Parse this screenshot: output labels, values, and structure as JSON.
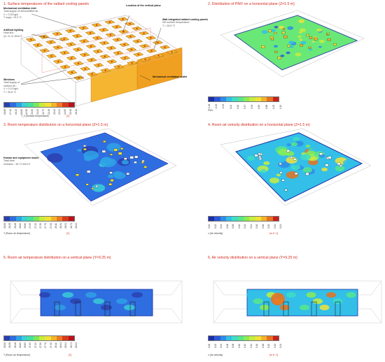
{
  "colors": {
    "title": "#d62a1e",
    "accent_orange": "#f0a020",
    "temp_scale": [
      "#2a3fae",
      "#2f6ee0",
      "#2fa3e6",
      "#3ad1d8",
      "#46e0a0",
      "#7ee85a",
      "#c7ec3e",
      "#f1e23a",
      "#f4b42a",
      "#ee7a22",
      "#d83a1e",
      "#b8121c"
    ],
    "pmv_scale": [
      "#1a2fa8",
      "#2d59d8",
      "#2f8ce8",
      "#33bfe8",
      "#3fdcc6",
      "#58e68a",
      "#8bec54",
      "#c7ec3e",
      "#f1e23a",
      "#f4b42a",
      "#e8721f",
      "#c8201a"
    ]
  },
  "panel1": {
    "title": "1. Surface temperatures of the radiant cooling panels",
    "notes": {
      "vent_inlet": {
        "title": "Mechanical ventilation inlet",
        "lines": [
          "Total supply of dehumidified air :",
          "V = 0.26 kg/s",
          "T supp= 19.3 °C"
        ]
      },
      "lighting": {
        "title": "Artificial lighting",
        "lines": [
          "Heat flux :",
          "Q= 21.11 W/m^2"
        ]
      },
      "windows": {
        "title": "Windows",
        "lines": [
          "Total supply of",
          "outdoor air :",
          "V = 0.13 kg/s",
          "T = 30.8 °C"
        ]
      },
      "vertical_plane": {
        "title": "Location of the vertical plane",
        "lines": []
      },
      "wall_panels": {
        "title": "Wall-integrated radiant cooling panels",
        "lines": [
          "Set surface temperature :",
          "T = 26.8 °C"
        ]
      },
      "vent_outlet": {
        "title": "Mechanical ventilation outlet",
        "lines": []
      }
    },
    "legend_label": "T_s (Surface temperature)",
    "unit": "[C]",
    "ticks": [
      "16.68",
      "17.40",
      "18.13",
      "18.85",
      "19.58",
      "20.30",
      "21.03",
      "21.75",
      "22.48",
      "23.20",
      "23.93",
      "24.65",
      "25.38",
      "26.10"
    ]
  },
  "panel2": {
    "title": "2. Distribution of PMV on a horizontal plane (Z=1.5 m)",
    "legend_label": "PMV",
    "unit": "",
    "ticks": [
      "-0.46",
      "-0.29",
      "-0.13",
      "0.04",
      "0.20",
      "0.37",
      "0.53",
      "0.69",
      "0.86",
      "1.02",
      "1.19"
    ]
  },
  "panel3": {
    "title": "3. Room temperature distribution on a horizontal plane (Z=1.5 m)",
    "notes": {
      "human": {
        "title": "Human and equipment model",
        "lines": [
          "Total heat",
          "emission : 39.71 W/m^2"
        ]
      }
    },
    "legend_label": "T (Room air temperature)",
    "unit": "[C]",
    "ticks": [
      "26.08",
      "26.28",
      "26.48",
      "26.69",
      "26.89",
      "27.09",
      "27.29",
      "27.50",
      "27.70",
      "27.90",
      "28.11",
      "28.31",
      "28.51",
      "28.71",
      "28.92"
    ]
  },
  "panel4": {
    "title": "4. Room air velocity distribution on a horizontal plane (Z=1.5 m)",
    "legend_label": "v (Air velocity)",
    "unit": "[m s^-1]",
    "ticks": [
      "0.00",
      "0.02",
      "0.04",
      "0.06",
      "0.08",
      "0.10",
      "0.12",
      "0.14",
      "0.16",
      "0.18",
      "0.20",
      "0.22",
      "0.24"
    ]
  },
  "panel5": {
    "title": "5. Room air temperature distribution on a vertical plane (Y=9.25 m)",
    "legend_label": "T (Room air temperature)",
    "unit": "[C]",
    "ticks": [
      "26.08",
      "26.28",
      "26.48",
      "26.69",
      "26.89",
      "27.09",
      "27.29",
      "27.50",
      "27.70",
      "27.90",
      "28.11",
      "28.31",
      "28.51",
      "28.71",
      "28.92"
    ]
  },
  "panel6": {
    "title": "6. Air velocity distribution on a vertical plane (Y=9.25 m)",
    "legend_label": "v (Air velocity)",
    "unit": "[m s^-1]",
    "ticks": [
      "0.00",
      "0.02",
      "0.04",
      "0.06",
      "0.08",
      "0.10",
      "0.12",
      "0.14",
      "0.16",
      "0.18",
      "0.20",
      "0.22",
      "0.24"
    ]
  }
}
